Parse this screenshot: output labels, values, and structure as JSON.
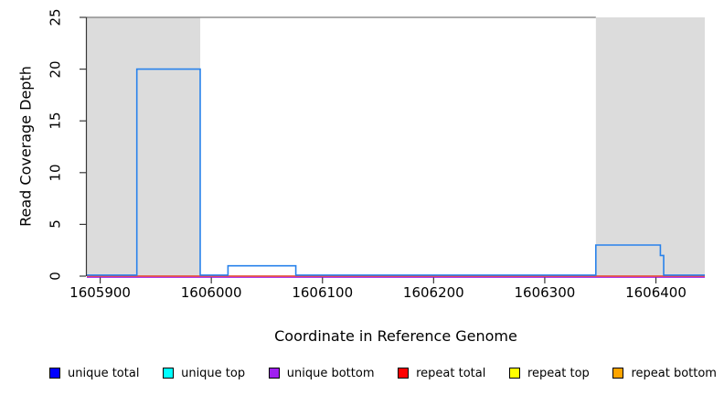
{
  "chart_data": {
    "type": "line",
    "title": "",
    "xlabel": "Coordinate in Reference Genome",
    "ylabel": "Read Coverage Depth",
    "xlim": [
      1605888,
      1606444
    ],
    "ylim": [
      0,
      25
    ],
    "x_ticks": [
      1605900,
      1606000,
      1606100,
      1606200,
      1606300,
      1606400
    ],
    "y_ticks": [
      0,
      5,
      10,
      15,
      20,
      25
    ],
    "grid": false,
    "legend_position": "bottom",
    "axis_color": "#383838",
    "shaded_color": "#dcdcdc",
    "shaded_regions": [
      {
        "start": 1605888,
        "end": 1605990
      },
      {
        "start": 1606346,
        "end": 1606444
      }
    ],
    "cap_line": {
      "value": 25,
      "x_start": 1605888,
      "x_end": 1606346,
      "color": "#8f8f8f"
    },
    "series": [
      {
        "name": "unique total",
        "legend_color": "#0000ff",
        "line_color": "#2882eb",
        "type": "step",
        "segments": [
          [
            1605888,
            1605933,
            0
          ],
          [
            1605933,
            1605990,
            20
          ],
          [
            1605990,
            1606015,
            0
          ],
          [
            1606015,
            1606076,
            1
          ],
          [
            1606076,
            1606346,
            0
          ],
          [
            1606346,
            1606404,
            3
          ],
          [
            1606404,
            1606407,
            2
          ],
          [
            1606407,
            1606444,
            0
          ]
        ]
      },
      {
        "name": "unique top",
        "legend_color": "#00ffff",
        "line_color": "#00ffff",
        "type": "constant",
        "value": 0
      },
      {
        "name": "unique bottom",
        "legend_color": "#a020f0",
        "line_color": "#a020f0",
        "type": "constant",
        "value": 0
      },
      {
        "name": "repeat total",
        "legend_color": "#ff0000",
        "line_color": "#ff2222",
        "type": "constant",
        "value": 0
      },
      {
        "name": "repeat top",
        "legend_color": "#ffff00",
        "line_color": "#ffff00",
        "type": "constant",
        "value": 0
      },
      {
        "name": "repeat bottom",
        "legend_color": "#ffa500",
        "line_color": "#ffa500",
        "type": "constant",
        "value": 0
      }
    ]
  }
}
